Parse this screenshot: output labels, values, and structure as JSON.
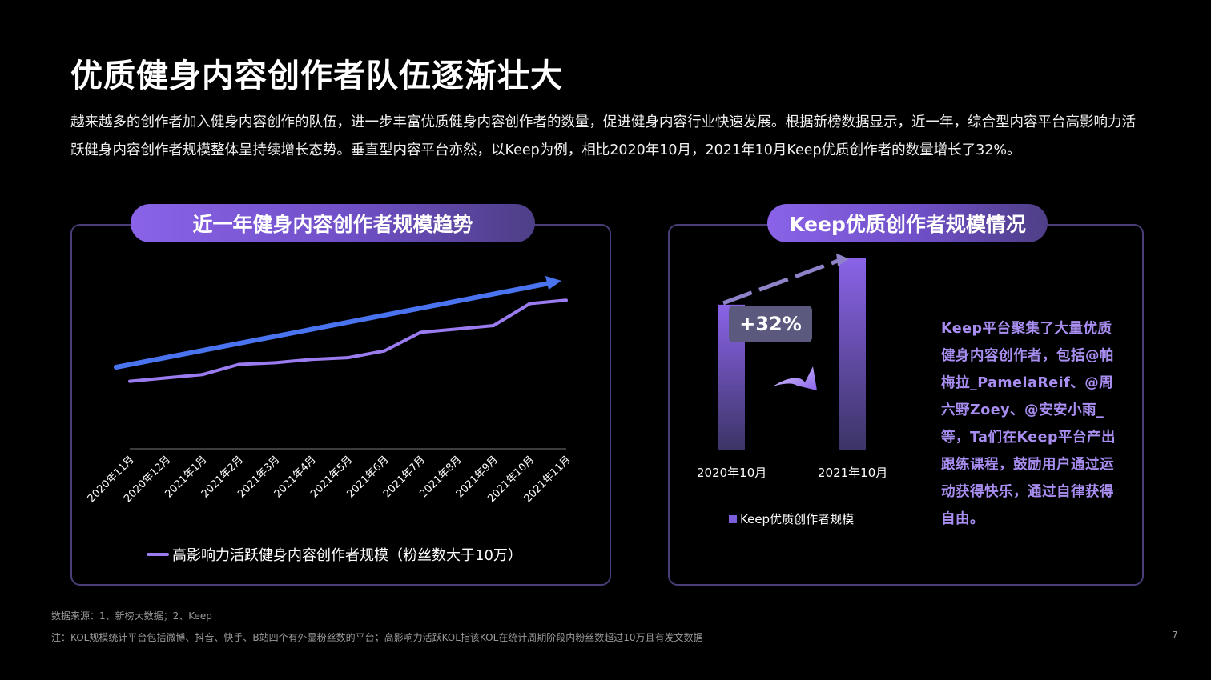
{
  "title": "优质健身内容创作者队伍逐渐壮大",
  "intro": "越来越多的创作者加入健身内容创作的队伍，进一步丰富优质健身内容创作者的数量，促进健身内容行业快速发展。根据新榜数据显示，近一年，综合型内容平台高影响力活跃健身内容创作者规模整体呈持续增长态势。垂直型内容平台亦然，以Keep为例，相比2020年10月，2021年10月Keep优质创作者的数量增长了32%。",
  "left_panel": {
    "pill_title": "近一年健身内容创作者规模趋势",
    "legend": "高影响力活跃健身内容创作者规模（粉丝数大于10万）"
  },
  "right_panel": {
    "pill_title": "Keep优质创作者规模情况",
    "growth_badge": "+32%",
    "legend": "Keep优质创作者规模",
    "description": "Keep平台聚集了大量优质健身内容创作者，包括@帕梅拉_PamelaReif、@周六野Zoey、@安安小雨_ 等，Ta们在Keep平台产出跟练课程，鼓励用户通过运动获得快乐，通过自律获得自由。"
  },
  "colors": {
    "line": "#9b7cf0",
    "trend_arrow": "#4a73f0",
    "bar_top": "#8a63e8",
    "bar_bottom": "#3c3466",
    "panel_border": "#4a3d78"
  },
  "chart_data": [
    {
      "type": "line",
      "title": "近一年健身内容创作者规模趋势",
      "series_name": "高影响力活跃健身内容创作者规模（粉丝数大于10万）",
      "categories": [
        "2020年11月",
        "2020年12月",
        "2021年1月",
        "2021年2月",
        "2021年3月",
        "2021年4月",
        "2021年5月",
        "2021年6月",
        "2021年7月",
        "2021年8月",
        "2021年9月",
        "2021年10月",
        "2021年11月"
      ],
      "values": [
        100,
        102,
        104,
        110,
        111,
        113,
        114,
        118,
        129,
        131,
        133,
        146,
        148
      ],
      "ylim": [
        60,
        160
      ],
      "xlabel": "",
      "ylabel": ""
    },
    {
      "type": "bar",
      "title": "Keep优质创作者规模情况",
      "categories": [
        "2020年10月",
        "2021年10月"
      ],
      "values": [
        100,
        132
      ],
      "series_name": "Keep优质创作者规模",
      "ylim": [
        0,
        140
      ],
      "annotation": "+32%"
    }
  ],
  "sources": {
    "line1": "数据来源：1、新榜大数据；2、Keep",
    "line2": "注：KOL规模统计平台包括微博、抖音、快手、B站四个有外显粉丝数的平台；高影响力活跃KOL指该KOL在统计周期阶段内粉丝数超过10万且有发文数据"
  },
  "page_number": "7"
}
